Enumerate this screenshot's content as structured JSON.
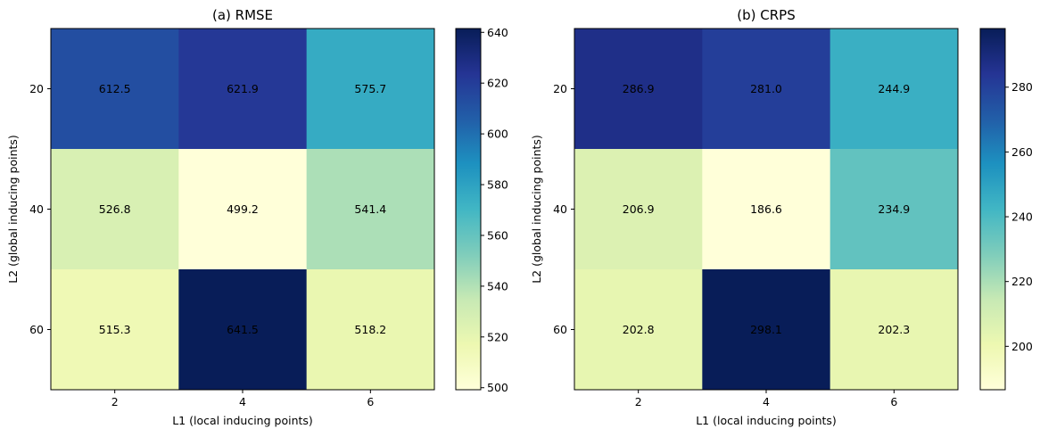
{
  "chart_data": [
    {
      "type": "heatmap",
      "title": "(a) RMSE",
      "xlabel": "L1 (local inducing points)",
      "ylabel": "L2 (global inducing points)",
      "x_categories": [
        "2",
        "4",
        "6"
      ],
      "y_categories": [
        "20",
        "40",
        "60"
      ],
      "values": [
        [
          612.5,
          621.9,
          575.7
        ],
        [
          526.8,
          499.2,
          541.4
        ],
        [
          515.3,
          641.5,
          518.2
        ]
      ],
      "value_labels": [
        [
          "612.5",
          "621.9",
          "575.7"
        ],
        [
          "526.8",
          "499.2",
          "541.4"
        ],
        [
          "515.3",
          "641.5",
          "518.2"
        ]
      ],
      "colormap": "YlGnBu",
      "colorbar_range": [
        499.2,
        641.5
      ],
      "colorbar_ticks": [
        500,
        520,
        540,
        560,
        580,
        600,
        620,
        640
      ],
      "colorbar_tick_labels": [
        "500",
        "520",
        "540",
        "560",
        "580",
        "600",
        "620",
        "640"
      ]
    },
    {
      "type": "heatmap",
      "title": "(b) CRPS",
      "xlabel": "L1 (local inducing points)",
      "ylabel": "L2 (global inducing points)",
      "x_categories": [
        "2",
        "4",
        "6"
      ],
      "y_categories": [
        "20",
        "40",
        "60"
      ],
      "values": [
        [
          286.9,
          281.0,
          244.9
        ],
        [
          206.9,
          186.6,
          234.9
        ],
        [
          202.8,
          298.1,
          202.3
        ]
      ],
      "value_labels": [
        [
          "286.9",
          "281.0",
          "244.9"
        ],
        [
          "206.9",
          "186.6",
          "234.9"
        ],
        [
          "202.8",
          "298.1",
          "202.3"
        ]
      ],
      "colormap": "YlGnBu",
      "colorbar_range": [
        186.6,
        298.1
      ],
      "colorbar_ticks": [
        200,
        220,
        240,
        260,
        280
      ],
      "colorbar_tick_labels": [
        "200",
        "220",
        "240",
        "260",
        "280"
      ]
    }
  ]
}
